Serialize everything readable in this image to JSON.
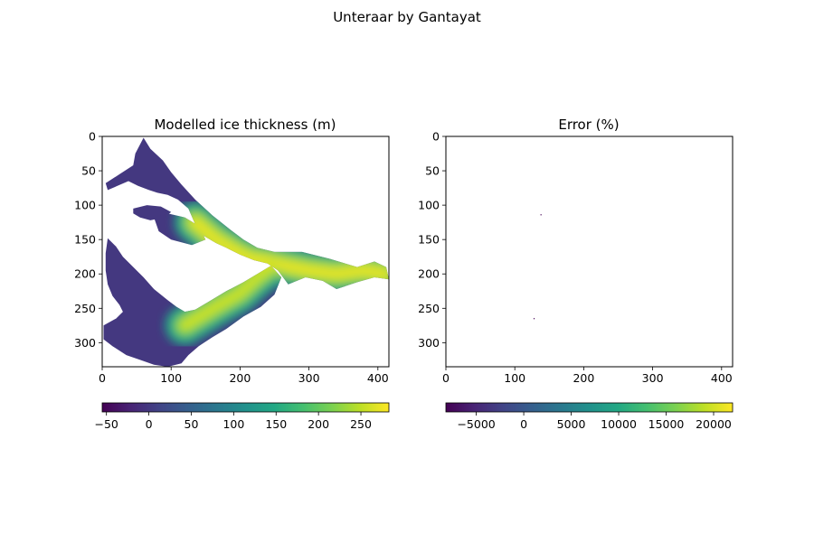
{
  "figure": {
    "suptitle": "Unteraar by Gantayat"
  },
  "chart_data": [
    {
      "type": "heatmap",
      "title": "Modelled ice thickness (m)",
      "xlabel": "",
      "ylabel": "",
      "xlim": [
        0,
        416
      ],
      "ylim": [
        335,
        0
      ],
      "x_ticks": [
        "0",
        "100",
        "200",
        "300",
        "400"
      ],
      "y_ticks": [
        "0",
        "50",
        "100",
        "150",
        "200",
        "250",
        "300"
      ],
      "x_tick_values": [
        0,
        100,
        200,
        300,
        400
      ],
      "y_tick_values": [
        0,
        50,
        100,
        150,
        200,
        250,
        300
      ],
      "colormap": "viridis",
      "colorbar": {
        "orientation": "horizontal",
        "range": [
          -55,
          283
        ],
        "ticks": [
          "−50",
          "0",
          "50",
          "100",
          "150",
          "200",
          "250"
        ],
        "tick_values": [
          -50,
          0,
          50,
          100,
          150,
          200,
          250
        ]
      },
      "field": {
        "background_value": 0,
        "regions": [
          {
            "name": "north-tributary",
            "path": [
              [
                60,
                2
              ],
              [
                70,
                18
              ],
              [
                88,
                35
              ],
              [
                100,
                52
              ],
              [
                115,
                70
              ],
              [
                135,
                92
              ],
              [
                160,
                115
              ],
              [
                185,
                135
              ],
              [
                205,
                150
              ],
              [
                225,
                162
              ],
              [
                250,
                168
              ],
              [
                290,
                168
              ],
              [
                330,
                178
              ],
              [
                370,
                190
              ],
              [
                395,
                182
              ],
              [
                412,
                190
              ],
              [
                416,
                208
              ],
              [
                395,
                205
              ],
              [
                370,
                212
              ],
              [
                340,
                222
              ],
              [
                320,
                210
              ],
              [
                295,
                205
              ],
              [
                270,
                215
              ],
              [
                255,
                195
              ],
              [
                240,
                185
              ],
              [
                220,
                180
              ],
              [
                200,
                172
              ],
              [
                180,
                162
              ],
              [
                165,
                155
              ],
              [
                148,
                145
              ],
              [
                135,
                128
              ],
              [
                125,
                105
              ],
              [
                110,
                92
              ],
              [
                95,
                85
              ],
              [
                80,
                82
              ],
              [
                68,
                78
              ],
              [
                52,
                72
              ],
              [
                38,
                65
              ],
              [
                22,
                72
              ],
              [
                8,
                78
              ],
              [
                5,
                68
              ],
              [
                25,
                55
              ],
              [
                45,
                42
              ],
              [
                48,
                25
              ]
            ]
          },
          {
            "name": "west-lobe",
            "path": [
              [
                45,
                105
              ],
              [
                65,
                100
              ],
              [
                85,
                102
              ],
              [
                100,
                110
              ],
              [
                90,
                118
              ],
              [
                70,
                122
              ],
              [
                55,
                118
              ],
              [
                45,
                112
              ]
            ]
          },
          {
            "name": "central-lobe",
            "path": [
              [
                75,
                118
              ],
              [
                95,
                112
              ],
              [
                120,
                118
              ],
              [
                140,
                130
              ],
              [
                150,
                150
              ],
              [
                130,
                158
              ],
              [
                100,
                150
              ],
              [
                82,
                138
              ]
            ]
          },
          {
            "name": "south-tributary",
            "path": [
              [
                8,
                148
              ],
              [
                20,
                160
              ],
              [
                30,
                175
              ],
              [
                45,
                190
              ],
              [
                60,
                205
              ],
              [
                75,
                222
              ],
              [
                95,
                238
              ],
              [
                108,
                248
              ],
              [
                120,
                255
              ],
              [
                135,
                252
              ],
              [
                155,
                240
              ],
              [
                180,
                225
              ],
              [
                205,
                212
              ],
              [
                225,
                200
              ],
              [
                245,
                188
              ],
              [
                260,
                205
              ],
              [
                250,
                230
              ],
              [
                230,
                248
              ],
              [
                205,
                262
              ],
              [
                180,
                280
              ],
              [
                160,
                292
              ],
              [
                140,
                305
              ],
              [
                125,
                318
              ],
              [
                115,
                330
              ],
              [
                95,
                335
              ],
              [
                75,
                332
              ],
              [
                55,
                325
              ],
              [
                35,
                318
              ],
              [
                15,
                305
              ],
              [
                2,
                295
              ],
              [
                2,
                275
              ],
              [
                20,
                265
              ],
              [
                30,
                255
              ],
              [
                25,
                245
              ],
              [
                15,
                232
              ],
              [
                8,
                215
              ],
              [
                5,
                195
              ],
              [
                5,
                170
              ]
            ]
          }
        ],
        "flowline": {
          "path": [
            [
              135,
              125
            ],
            [
              165,
              150
            ],
            [
              195,
              168
            ],
            [
              215,
              178
            ],
            [
              240,
              182
            ],
            [
              265,
              188
            ],
            [
              300,
              195
            ],
            [
              340,
              200
            ],
            [
              380,
              195
            ],
            [
              410,
              200
            ]
          ],
          "peak_value": 270
        },
        "south_flowline": {
          "path": [
            [
              120,
              275
            ],
            [
              145,
              260
            ],
            [
              170,
              245
            ],
            [
              200,
              228
            ],
            [
              225,
              205
            ],
            [
              245,
              190
            ]
          ],
          "peak_value": 255
        }
      }
    },
    {
      "type": "heatmap",
      "title": "Error (%)",
      "xlabel": "",
      "ylabel": "",
      "xlim": [
        0,
        416
      ],
      "ylim": [
        335,
        0
      ],
      "x_ticks": [
        "0",
        "100",
        "200",
        "300",
        "400"
      ],
      "y_ticks": [
        "0",
        "50",
        "100",
        "150",
        "200",
        "250",
        "300"
      ],
      "x_tick_values": [
        0,
        100,
        200,
        300,
        400
      ],
      "y_tick_values": [
        0,
        50,
        100,
        150,
        200,
        250,
        300
      ],
      "colormap": "viridis",
      "colorbar": {
        "orientation": "horizontal",
        "range": [
          -8200,
          22000
        ],
        "ticks": [
          "−5000",
          "0",
          "5000",
          "10000",
          "15000",
          "20000"
        ],
        "tick_values": [
          -5000,
          0,
          5000,
          10000,
          15000,
          20000
        ]
      },
      "points": [
        {
          "x": 138,
          "y": 114,
          "value": -8000
        },
        {
          "x": 128,
          "y": 265,
          "value": -8000
        }
      ]
    }
  ]
}
